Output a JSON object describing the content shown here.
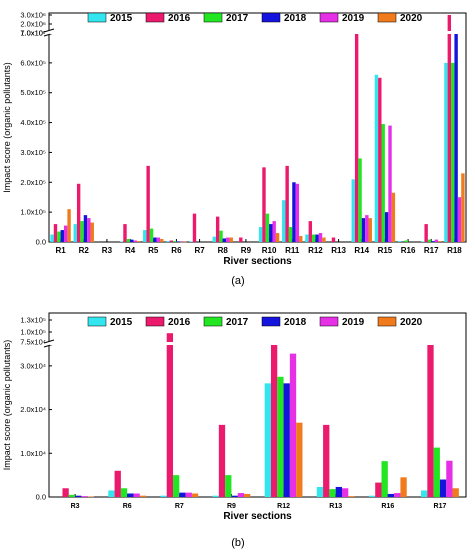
{
  "years": [
    "2015",
    "2016",
    "2017",
    "2018",
    "2019",
    "2020"
  ],
  "colors": {
    "2015": "#33e6ee",
    "2016": "#ec1a6c",
    "2017": "#22e622",
    "2018": "#1414dc",
    "2019": "#e630e6",
    "2020": "#f07b1c"
  },
  "caption_a": "(a)",
  "caption_b": "(b)",
  "chart_data": [
    {
      "type": "bar",
      "panel": "a",
      "scale": "broken y-axis",
      "categories": [
        "R1",
        "R2",
        "R3",
        "R4",
        "R5",
        "R6",
        "R7",
        "R8",
        "R9",
        "R10",
        "R11",
        "R12",
        "R13",
        "R14",
        "R15",
        "R16",
        "R17",
        "R18"
      ],
      "series": [
        {
          "name": "2015",
          "values": [
            25000,
            60000,
            0,
            2000,
            40000,
            3000,
            2000,
            18000,
            0,
            50000,
            140000,
            25000,
            0,
            210000,
            560000,
            3000,
            2000,
            600000
          ]
        },
        {
          "name": "2016",
          "values": [
            60000,
            195000,
            0,
            60000,
            255000,
            5000,
            95000,
            85000,
            15000,
            250000,
            255000,
            70000,
            15000,
            700000,
            550000,
            0,
            60000,
            3000000
          ]
        },
        {
          "name": "2017",
          "values": [
            35000,
            70000,
            0,
            10000,
            45000,
            3000,
            0,
            38000,
            0,
            95000,
            50000,
            25000,
            0,
            280000,
            395000,
            5000,
            8000,
            600000
          ]
        },
        {
          "name": "2018",
          "values": [
            40000,
            90000,
            0,
            8000,
            15000,
            2000,
            0,
            12000,
            0,
            60000,
            200000,
            25000,
            0,
            80000,
            100000,
            0,
            3000,
            1000000
          ]
        },
        {
          "name": "2019",
          "values": [
            55000,
            80000,
            0,
            5000,
            15000,
            1000,
            0,
            15000,
            0,
            70000,
            195000,
            30000,
            0,
            90000,
            390000,
            0,
            8000,
            150000
          ]
        },
        {
          "name": "2020",
          "values": [
            110000,
            65000,
            0,
            3000,
            10000,
            1000,
            0,
            15000,
            0,
            30000,
            20000,
            15000,
            0,
            80000,
            165000,
            0,
            3000,
            230000
          ]
        }
      ],
      "ylabel": "Impact score (organic pollutants)",
      "xlabel": "River sections",
      "yticks_lower": [
        "0.0",
        "1.0x10⁵",
        "2.0x10⁵",
        "3.0x10⁵",
        "4.0x10⁵",
        "5.0x10⁵",
        "6.0x10⁵",
        "7.0x10⁵"
      ],
      "yticks_upper": [
        "1.0x10⁶",
        "2.0x10⁶",
        "3.0x10⁶"
      ],
      "ylim_lower": [
        0,
        700000
      ],
      "ylim_upper": [
        700000,
        3000000
      ],
      "legend_position": "top"
    },
    {
      "type": "bar",
      "panel": "b",
      "scale": "broken y-axis",
      "categories": [
        "R3",
        "R6",
        "R7",
        "R9",
        "R12",
        "R13",
        "R16",
        "R17"
      ],
      "series": [
        {
          "name": "2015",
          "values": [
            0,
            1500,
            300,
            300,
            26000,
            2300,
            300,
            1500
          ]
        },
        {
          "name": "2016",
          "values": [
            2000,
            6000,
            97000,
            16500,
            70000,
            16500,
            3300,
            35000
          ]
        },
        {
          "name": "2017",
          "values": [
            500,
            2000,
            5000,
            5000,
            27500,
            1800,
            8200,
            11300
          ]
        },
        {
          "name": "2018",
          "values": [
            300,
            800,
            1000,
            300,
            26000,
            2300,
            700,
            4000
          ]
        },
        {
          "name": "2019",
          "values": [
            200,
            800,
            1000,
            900,
            32800,
            2000,
            900,
            8300
          ]
        },
        {
          "name": "2020",
          "values": [
            100,
            300,
            800,
            700,
            17000,
            200,
            4500,
            2000
          ]
        }
      ],
      "ylabel": "Impact score (organic pollutants)",
      "xlabel": "River sections",
      "yticks_lower": [
        "0.0",
        "1.0x10⁴",
        "2.0x10⁴",
        "3.0x10⁴"
      ],
      "yticks_upper": [
        "7.5x10⁴",
        "1.0x10⁵",
        "1.3x10⁵"
      ],
      "ylim_lower": [
        0,
        35000
      ],
      "ylim_upper": [
        70000,
        130000
      ],
      "legend_position": "top"
    }
  ]
}
